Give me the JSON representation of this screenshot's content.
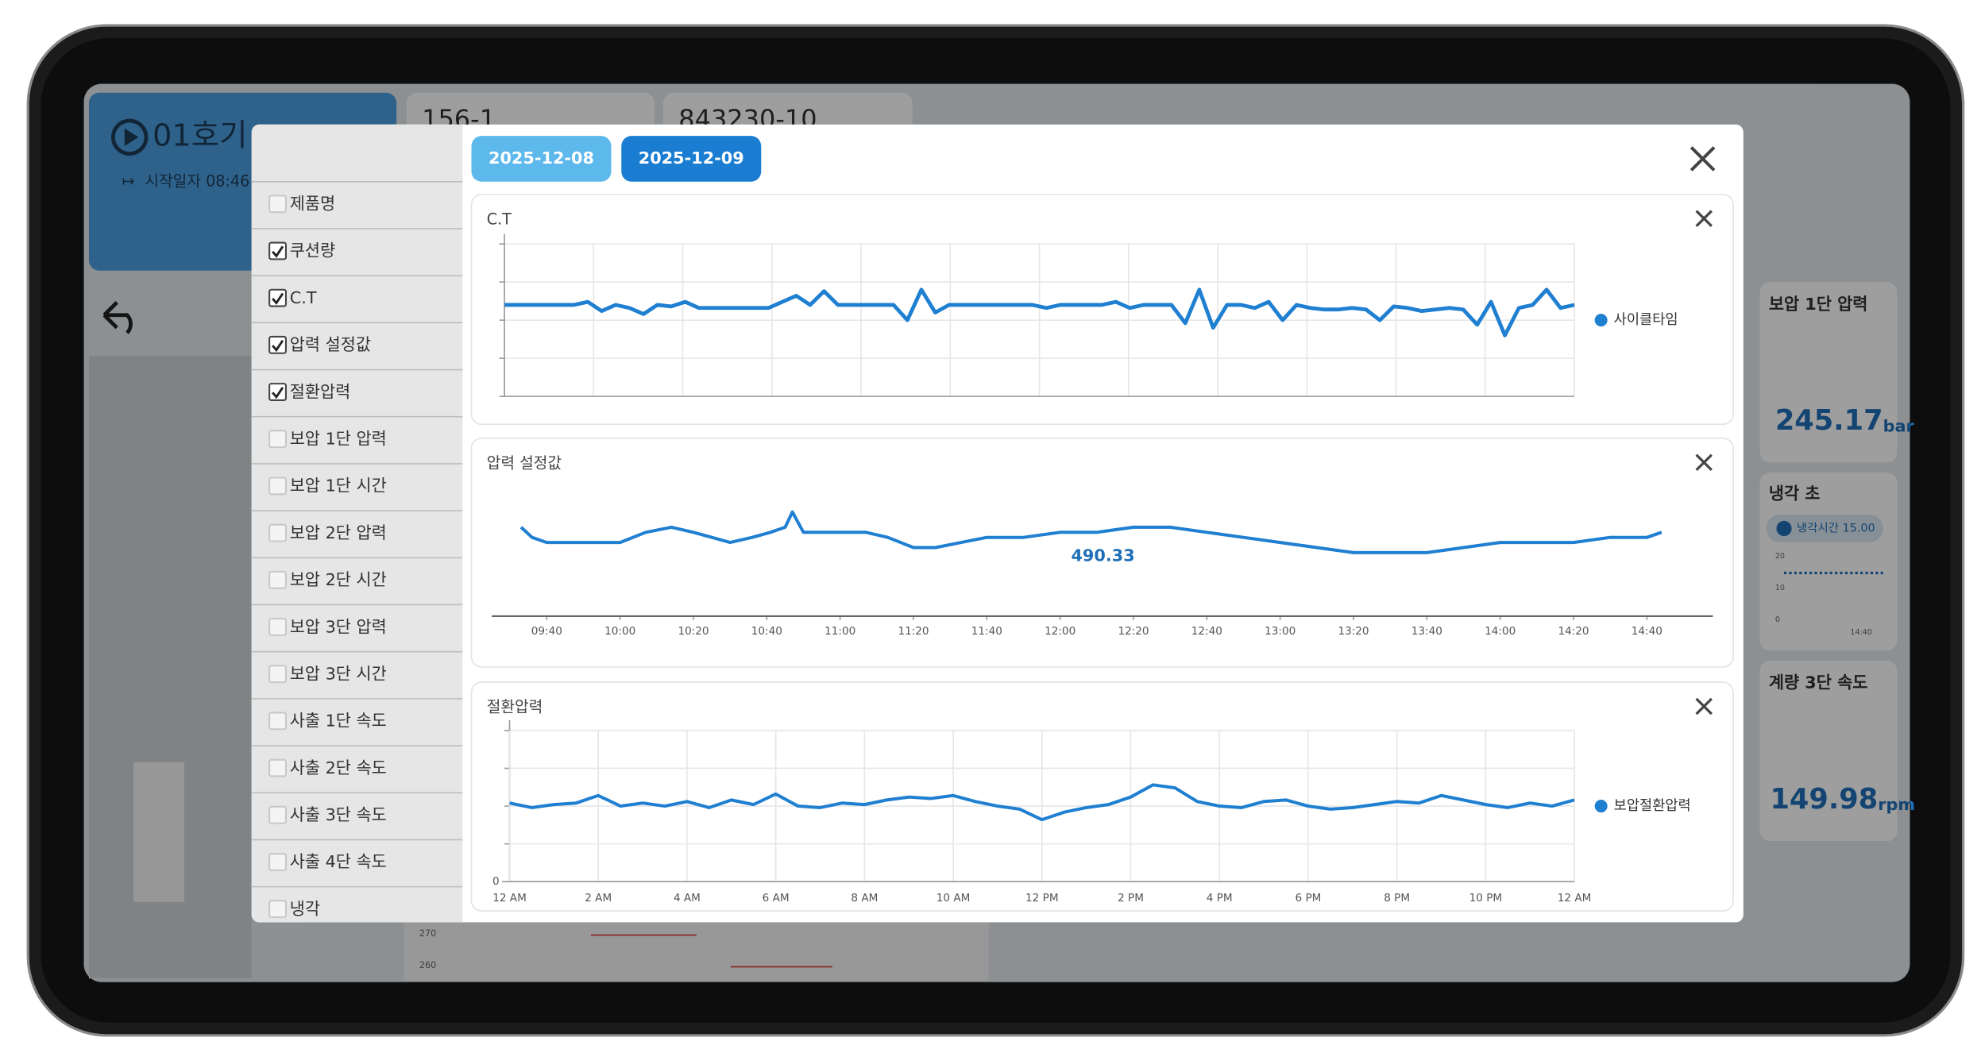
{
  "background": {
    "machine": "01호기",
    "start": "시작일자 08:46",
    "cards": [
      "156-1",
      "843230-10"
    ],
    "right_cards": [
      {
        "title": "보압 1단 압력",
        "value": "245.17",
        "unit": "bar"
      },
      {
        "title": "냉각 초",
        "badge": "냉각시간 15.00",
        "ticks": [
          "20",
          "10",
          "0"
        ],
        "x": "14:40"
      },
      {
        "title": "계량 3단 속도",
        "value": "149.98",
        "unit": "rpm"
      }
    ],
    "bottom_ticks": [
      "270",
      "260"
    ]
  },
  "dates": [
    "2025-12-08",
    "2025-12-09"
  ],
  "active_date": 1,
  "checklist": [
    {
      "label": "제품명",
      "checked": false
    },
    {
      "label": "쿠션량",
      "checked": true
    },
    {
      "label": "C.T",
      "checked": true
    },
    {
      "label": "압력 설정값",
      "checked": true
    },
    {
      "label": "절환압력",
      "checked": true
    },
    {
      "label": "보압 1단 압력",
      "checked": false
    },
    {
      "label": "보압 1단 시간",
      "checked": false
    },
    {
      "label": "보압 2단 압력",
      "checked": false
    },
    {
      "label": "보압 2단 시간",
      "checked": false
    },
    {
      "label": "보압 3단 압력",
      "checked": false
    },
    {
      "label": "보압 3단 시간",
      "checked": false
    },
    {
      "label": "사출 1단 속도",
      "checked": false
    },
    {
      "label": "사출 2단 속도",
      "checked": false
    },
    {
      "label": "사출 3단 속도",
      "checked": false
    },
    {
      "label": "사출 4단 속도",
      "checked": false
    },
    {
      "label": "냉각",
      "checked": false
    }
  ],
  "charts": [
    {
      "type": "line",
      "title": "C.T",
      "ylim": [
        0,
        100
      ],
      "grid": true,
      "legend": "right",
      "series": [
        {
          "name": "사이클타임",
          "color": "#1f7fd1",
          "values": [
            60,
            60,
            60,
            60,
            60,
            60,
            62,
            56,
            60,
            58,
            54,
            60,
            59,
            62,
            58,
            58,
            58,
            58,
            58,
            58,
            62,
            66,
            60,
            69,
            60,
            60,
            60,
            60,
            60,
            50,
            70,
            55,
            60,
            60,
            60,
            60,
            60,
            60,
            60,
            58,
            60,
            60,
            60,
            60,
            62,
            58,
            60,
            60,
            60,
            48,
            70,
            45,
            60,
            60,
            58,
            62,
            50,
            60,
            58,
            57,
            57,
            58,
            57,
            50,
            59,
            58,
            56,
            57,
            58,
            57,
            47,
            62,
            40,
            58,
            60,
            70,
            58,
            60
          ]
        }
      ]
    },
    {
      "type": "line",
      "title": "압력 설정값",
      "xlim": [
        565,
        898
      ],
      "ylim": [
        480,
        500
      ],
      "grid": false,
      "xticks": [
        {
          "value": 580,
          "label": "09:40"
        },
        {
          "value": 600,
          "label": "10:00"
        },
        {
          "value": 620,
          "label": "10:20"
        },
        {
          "value": 640,
          "label": "10:40"
        },
        {
          "value": 660,
          "label": "11:00"
        },
        {
          "value": 680,
          "label": "11:20"
        },
        {
          "value": 700,
          "label": "11:40"
        },
        {
          "value": 720,
          "label": "12:00"
        },
        {
          "value": 740,
          "label": "12:20"
        },
        {
          "value": 760,
          "label": "12:40"
        },
        {
          "value": 780,
          "label": "13:00"
        },
        {
          "value": 800,
          "label": "13:20"
        },
        {
          "value": 820,
          "label": "13:40"
        },
        {
          "value": 840,
          "label": "14:00"
        },
        {
          "value": 860,
          "label": "14:20"
        },
        {
          "value": 880,
          "label": "14:40"
        }
      ],
      "annotations": [
        "490.33"
      ],
      "series": [
        {
          "color": "#1f7fd1",
          "x": [
            573,
            576,
            580,
            590,
            600,
            607,
            614,
            620,
            630,
            636,
            641,
            645,
            647,
            650,
            660,
            667,
            673,
            680,
            686,
            693,
            700,
            710,
            720,
            730,
            740,
            750,
            760,
            770,
            780,
            790,
            800,
            810,
            820,
            830,
            840,
            850,
            860,
            870,
            880,
            884
          ],
          "values": [
            495,
            493,
            492,
            492,
            492,
            494,
            495,
            494,
            492,
            493,
            494,
            495,
            498,
            494,
            494,
            494,
            493,
            491,
            491,
            492,
            493,
            493,
            494,
            494,
            495,
            495,
            494,
            493,
            492,
            491,
            490,
            490,
            490,
            491,
            492,
            492,
            492,
            493,
            493,
            494
          ]
        }
      ]
    },
    {
      "type": "line",
      "title": "절환압력",
      "xlim": [
        0,
        24
      ],
      "ylim": [
        0,
        100
      ],
      "grid": true,
      "legend": "right",
      "yticks": [
        0
      ],
      "xticks": [
        {
          "value": 0,
          "label": "12 AM"
        },
        {
          "value": 2,
          "label": "2 AM"
        },
        {
          "value": 4,
          "label": "4 AM"
        },
        {
          "value": 6,
          "label": "6 AM"
        },
        {
          "value": 8,
          "label": "8 AM"
        },
        {
          "value": 10,
          "label": "10 AM"
        },
        {
          "value": 12,
          "label": "12 PM"
        },
        {
          "value": 14,
          "label": "2 PM"
        },
        {
          "value": 16,
          "label": "4 PM"
        },
        {
          "value": 18,
          "label": "6 PM"
        },
        {
          "value": 20,
          "label": "8 PM"
        },
        {
          "value": 22,
          "label": "10 PM"
        },
        {
          "value": 24,
          "label": "12 AM"
        }
      ],
      "series": [
        {
          "name": "보압절환압력",
          "color": "#1f7fd1",
          "x": [
            0,
            0.5,
            1,
            1.5,
            2,
            2.5,
            3,
            3.5,
            4,
            4.5,
            5,
            5.5,
            6,
            6.5,
            7,
            7.5,
            8,
            8.5,
            9,
            9.5,
            10,
            10.5,
            11,
            11.5,
            12,
            12.5,
            13,
            13.5,
            14,
            14.5,
            15,
            15.5,
            16,
            16.5,
            17,
            17.5,
            18,
            18.5,
            19,
            19.5,
            20,
            20.5,
            21,
            21.5,
            22,
            22.5,
            23,
            23.5,
            24
          ],
          "values": [
            52,
            49,
            51,
            52,
            57,
            50,
            52,
            50,
            53,
            49,
            54,
            51,
            58,
            50,
            49,
            52,
            51,
            54,
            56,
            55,
            57,
            53,
            50,
            48,
            41,
            46,
            49,
            51,
            56,
            64,
            62,
            53,
            50,
            49,
            53,
            54,
            50,
            48,
            49,
            51,
            53,
            52,
            57,
            54,
            51,
            49,
            52,
            50,
            54
          ]
        }
      ]
    }
  ]
}
